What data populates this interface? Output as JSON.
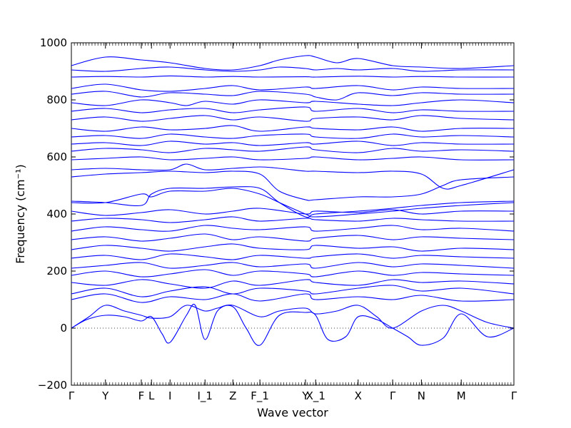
{
  "chart_data": {
    "type": "line",
    "xlabel": "Wave vector",
    "ylabel": "Frequency (cm⁻¹)",
    "ylim": [
      -200,
      1000
    ],
    "yticks": [
      "−200",
      "0",
      "200",
      "400",
      "600",
      "800",
      "1000"
    ],
    "xlim": [
      0,
      1
    ],
    "xticks": [
      {
        "label": "Γ",
        "x": 0.0
      },
      {
        "label": "Y",
        "x": 0.077
      },
      {
        "label": "F",
        "x": 0.158
      },
      {
        "label": "L",
        "x": 0.181
      },
      {
        "label": "I",
        "x": 0.223
      },
      {
        "label": "I_1",
        "x": 0.302
      },
      {
        "label": "Z",
        "x": 0.365
      },
      {
        "label": "F_1",
        "x": 0.426
      },
      {
        "label": "Y",
        "x": 0.529
      },
      {
        "label": "X_1",
        "x": 0.552
      },
      {
        "label": "X",
        "x": 0.648
      },
      {
        "label": "Γ",
        "x": 0.726
      },
      {
        "label": "N",
        "x": 0.791
      },
      {
        "label": "M",
        "x": 0.881
      },
      {
        "label": "Γ",
        "x": 1.0
      }
    ],
    "zero_line": true,
    "series_color": "#0000ff",
    "series": [
      {
        "x": [
          0,
          0.035,
          0.077,
          0.12,
          0.158,
          0.181,
          0.205,
          0.223,
          0.26,
          0.28,
          0.302,
          0.33,
          0.365,
          0.395,
          0.426,
          0.47,
          0.529,
          0.552,
          0.58,
          0.62,
          0.648,
          0.69,
          0.726,
          0.76,
          0.791,
          0.84,
          0.881,
          0.94,
          1.0
        ],
        "y": [
          0,
          30,
          45,
          40,
          25,
          40,
          -20,
          -50,
          45,
          80,
          -40,
          60,
          75,
          0,
          -60,
          45,
          55,
          45,
          -40,
          -30,
          40,
          30,
          0,
          -30,
          -60,
          -35,
          50,
          -30,
          0
        ]
      },
      {
        "x": [
          0,
          0.04,
          0.077,
          0.12,
          0.158,
          0.181,
          0.223,
          0.26,
          0.302,
          0.33,
          0.365,
          0.426,
          0.47,
          0.529,
          0.552,
          0.6,
          0.648,
          0.69,
          0.726,
          0.791,
          0.84,
          0.881,
          0.94,
          1.0
        ],
        "y": [
          0,
          40,
          80,
          60,
          45,
          35,
          40,
          80,
          60,
          70,
          80,
          40,
          60,
          70,
          50,
          60,
          80,
          40,
          0,
          60,
          80,
          60,
          20,
          0
        ]
      },
      {
        "x": [
          0,
          0.077,
          0.158,
          0.223,
          0.302,
          0.365,
          0.426,
          0.529,
          0.552,
          0.648,
          0.726,
          0.791,
          0.881,
          1.0
        ],
        "y": [
          100,
          120,
          90,
          110,
          100,
          120,
          95,
          120,
          100,
          110,
          100,
          115,
          95,
          100
        ]
      },
      {
        "x": [
          0,
          0.077,
          0.158,
          0.223,
          0.302,
          0.365,
          0.426,
          0.529,
          0.552,
          0.648,
          0.726,
          0.791,
          0.881,
          1.0
        ],
        "y": [
          120,
          140,
          110,
          130,
          145,
          120,
          140,
          130,
          120,
          140,
          150,
          130,
          140,
          120
        ]
      },
      {
        "x": [
          0,
          0.077,
          0.158,
          0.223,
          0.302,
          0.365,
          0.426,
          0.529,
          0.552,
          0.648,
          0.726,
          0.791,
          0.881,
          1.0
        ],
        "y": [
          160,
          150,
          170,
          155,
          140,
          165,
          150,
          170,
          160,
          150,
          170,
          160,
          165,
          155
        ]
      },
      {
        "x": [
          0,
          0.077,
          0.158,
          0.223,
          0.302,
          0.365,
          0.426,
          0.529,
          0.552,
          0.648,
          0.726,
          0.791,
          0.881,
          1.0
        ],
        "y": [
          185,
          200,
          180,
          190,
          205,
          185,
          200,
          190,
          180,
          200,
          185,
          195,
          190,
          185
        ]
      },
      {
        "x": [
          0,
          0.077,
          0.158,
          0.223,
          0.302,
          0.365,
          0.426,
          0.529,
          0.552,
          0.648,
          0.726,
          0.791,
          0.881,
          1.0
        ],
        "y": [
          210,
          220,
          230,
          210,
          220,
          230,
          215,
          225,
          210,
          230,
          215,
          225,
          220,
          210
        ]
      },
      {
        "x": [
          0,
          0.077,
          0.158,
          0.223,
          0.302,
          0.365,
          0.426,
          0.529,
          0.552,
          0.648,
          0.726,
          0.791,
          0.881,
          1.0
        ],
        "y": [
          245,
          255,
          240,
          260,
          250,
          240,
          255,
          245,
          250,
          260,
          245,
          255,
          250,
          245
        ]
      },
      {
        "x": [
          0,
          0.077,
          0.158,
          0.223,
          0.302,
          0.365,
          0.426,
          0.529,
          0.552,
          0.648,
          0.726,
          0.791,
          0.881,
          1.0
        ],
        "y": [
          275,
          290,
          280,
          270,
          285,
          295,
          280,
          275,
          290,
          280,
          285,
          270,
          280,
          275
        ]
      },
      {
        "x": [
          0,
          0.077,
          0.158,
          0.223,
          0.302,
          0.365,
          0.426,
          0.529,
          0.552,
          0.648,
          0.726,
          0.791,
          0.881,
          1.0
        ],
        "y": [
          310,
          320,
          305,
          315,
          330,
          310,
          320,
          305,
          315,
          325,
          310,
          320,
          315,
          310
        ]
      },
      {
        "x": [
          0,
          0.077,
          0.158,
          0.223,
          0.302,
          0.365,
          0.426,
          0.529,
          0.552,
          0.648,
          0.726,
          0.791,
          0.881,
          1.0
        ],
        "y": [
          340,
          355,
          345,
          340,
          360,
          350,
          345,
          355,
          340,
          350,
          360,
          345,
          350,
          340
        ]
      },
      {
        "x": [
          0,
          0.077,
          0.158,
          0.223,
          0.302,
          0.365,
          0.426,
          0.529,
          0.552,
          0.648,
          0.726,
          0.791,
          0.881,
          1.0
        ],
        "y": [
          375,
          385,
          380,
          370,
          380,
          390,
          375,
          385,
          380,
          375,
          385,
          380,
          375,
          375
        ]
      },
      {
        "x": [
          0,
          0.077,
          0.158,
          0.223,
          0.302,
          0.365,
          0.426,
          0.529,
          0.552,
          0.648,
          0.726,
          0.791,
          0.881,
          1.0
        ],
        "y": [
          410,
          395,
          405,
          415,
          400,
          410,
          420,
          400,
          410,
          405,
          415,
          400,
          410,
          410
        ]
      },
      {
        "x": [
          0,
          0.077,
          0.158,
          0.181,
          0.223,
          0.302,
          0.365,
          0.426,
          0.47,
          0.529,
          0.552,
          0.648,
          0.726,
          0.791,
          0.881,
          1.0
        ],
        "y": [
          440,
          440,
          470,
          460,
          480,
          480,
          490,
          470,
          440,
          400,
          390,
          400,
          410,
          420,
          430,
          440
        ]
      },
      {
        "x": [
          0,
          0.077,
          0.158,
          0.181,
          0.223,
          0.302,
          0.365,
          0.426,
          0.47,
          0.529,
          0.552,
          0.648,
          0.726,
          0.791,
          0.881,
          1.0
        ],
        "y": [
          445,
          440,
          430,
          470,
          490,
          490,
          495,
          490,
          440,
          390,
          400,
          410,
          420,
          430,
          440,
          445
        ]
      },
      {
        "x": [
          0,
          0.077,
          0.158,
          0.223,
          0.302,
          0.365,
          0.426,
          0.47,
          0.529,
          0.552,
          0.648,
          0.726,
          0.791,
          0.84,
          0.881,
          1.0
        ],
        "y": [
          530,
          540,
          545,
          550,
          545,
          550,
          540,
          480,
          450,
          450,
          460,
          460,
          470,
          500,
          520,
          530
        ]
      },
      {
        "x": [
          0,
          0.077,
          0.158,
          0.223,
          0.26,
          0.302,
          0.365,
          0.426,
          0.47,
          0.529,
          0.552,
          0.648,
          0.726,
          0.791,
          0.84,
          0.881,
          1.0
        ],
        "y": [
          555,
          560,
          555,
          555,
          575,
          555,
          560,
          565,
          560,
          550,
          550,
          545,
          550,
          540,
          490,
          500,
          555
        ]
      },
      {
        "x": [
          0,
          0.077,
          0.158,
          0.223,
          0.302,
          0.365,
          0.426,
          0.529,
          0.552,
          0.648,
          0.726,
          0.791,
          0.881,
          1.0
        ],
        "y": [
          590,
          595,
          600,
          590,
          595,
          600,
          590,
          595,
          600,
          590,
          595,
          600,
          590,
          590
        ]
      },
      {
        "x": [
          0,
          0.077,
          0.158,
          0.223,
          0.302,
          0.365,
          0.426,
          0.529,
          0.552,
          0.648,
          0.726,
          0.791,
          0.881,
          1.0
        ],
        "y": [
          620,
          630,
          625,
          615,
          630,
          625,
          620,
          635,
          625,
          615,
          630,
          620,
          625,
          620
        ]
      },
      {
        "x": [
          0,
          0.077,
          0.158,
          0.223,
          0.302,
          0.365,
          0.426,
          0.529,
          0.552,
          0.648,
          0.726,
          0.791,
          0.881,
          1.0
        ],
        "y": [
          645,
          650,
          640,
          655,
          645,
          650,
          640,
          650,
          645,
          655,
          640,
          650,
          645,
          645
        ]
      },
      {
        "x": [
          0,
          0.077,
          0.158,
          0.223,
          0.302,
          0.365,
          0.426,
          0.529,
          0.552,
          0.648,
          0.726,
          0.791,
          0.881,
          1.0
        ],
        "y": [
          670,
          675,
          665,
          680,
          670,
          665,
          675,
          680,
          670,
          665,
          680,
          670,
          675,
          670
        ]
      },
      {
        "x": [
          0,
          0.077,
          0.158,
          0.223,
          0.302,
          0.365,
          0.426,
          0.529,
          0.552,
          0.648,
          0.726,
          0.791,
          0.881,
          1.0
        ],
        "y": [
          700,
          690,
          705,
          695,
          700,
          710,
          690,
          705,
          700,
          695,
          705,
          690,
          700,
          700
        ]
      },
      {
        "x": [
          0,
          0.077,
          0.158,
          0.223,
          0.302,
          0.365,
          0.426,
          0.529,
          0.552,
          0.648,
          0.726,
          0.791,
          0.881,
          1.0
        ],
        "y": [
          730,
          740,
          725,
          735,
          745,
          730,
          740,
          725,
          735,
          740,
          730,
          745,
          735,
          730
        ]
      },
      {
        "x": [
          0,
          0.077,
          0.158,
          0.223,
          0.302,
          0.365,
          0.426,
          0.529,
          0.552,
          0.648,
          0.726,
          0.791,
          0.881,
          1.0
        ],
        "y": [
          760,
          770,
          755,
          765,
          770,
          755,
          765,
          775,
          760,
          770,
          755,
          765,
          760,
          760
        ]
      },
      {
        "x": [
          0,
          0.077,
          0.158,
          0.223,
          0.26,
          0.302,
          0.365,
          0.426,
          0.529,
          0.552,
          0.648,
          0.726,
          0.791,
          0.881,
          1.0
        ],
        "y": [
          790,
          780,
          800,
          790,
          780,
          795,
          785,
          800,
          790,
          795,
          785,
          780,
          790,
          800,
          790
        ]
      },
      {
        "x": [
          0,
          0.077,
          0.158,
          0.223,
          0.302,
          0.365,
          0.426,
          0.529,
          0.552,
          0.6,
          0.648,
          0.726,
          0.791,
          0.881,
          1.0
        ],
        "y": [
          820,
          830,
          810,
          825,
          820,
          815,
          830,
          820,
          810,
          800,
          825,
          815,
          825,
          820,
          820
        ]
      },
      {
        "x": [
          0,
          0.077,
          0.158,
          0.223,
          0.302,
          0.365,
          0.426,
          0.529,
          0.552,
          0.648,
          0.726,
          0.791,
          0.881,
          1.0
        ],
        "y": [
          840,
          855,
          835,
          830,
          840,
          850,
          835,
          845,
          840,
          850,
          835,
          845,
          840,
          840
        ]
      },
      {
        "x": [
          0,
          0.077,
          0.158,
          0.223,
          0.302,
          0.365,
          0.426,
          0.529,
          0.552,
          0.648,
          0.726,
          0.791,
          0.881,
          1.0
        ],
        "y": [
          880,
          882,
          880,
          884,
          880,
          882,
          880,
          881,
          880,
          883,
          880,
          882,
          880,
          880
        ]
      },
      {
        "x": [
          0,
          0.077,
          0.158,
          0.223,
          0.302,
          0.365,
          0.426,
          0.47,
          0.529,
          0.552,
          0.6,
          0.648,
          0.726,
          0.791,
          0.881,
          1.0
        ],
        "y": [
          905,
          900,
          910,
          915,
          905,
          900,
          905,
          915,
          910,
          905,
          910,
          905,
          910,
          900,
          905,
          905
        ]
      },
      {
        "x": [
          0,
          0.077,
          0.158,
          0.223,
          0.302,
          0.365,
          0.426,
          0.47,
          0.529,
          0.552,
          0.6,
          0.648,
          0.726,
          0.791,
          0.881,
          1.0
        ],
        "y": [
          920,
          950,
          940,
          930,
          910,
          905,
          920,
          940,
          955,
          950,
          930,
          945,
          920,
          915,
          910,
          920
        ]
      }
    ]
  }
}
